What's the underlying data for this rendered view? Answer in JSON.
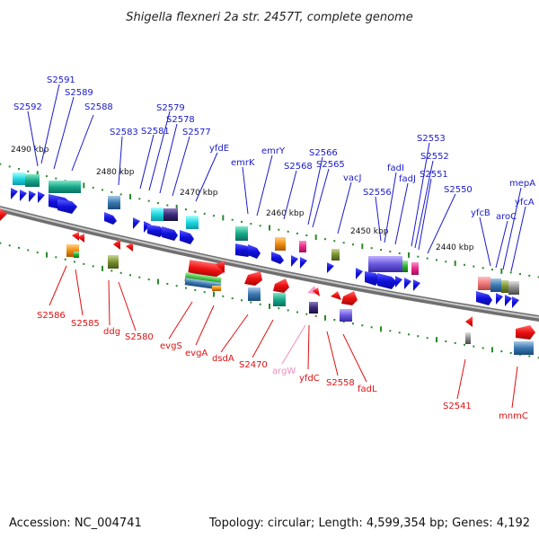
{
  "title": "Shigella flexneri 2a str. 2457T, complete genome",
  "footer": {
    "accession": "Accession: NC_004741",
    "summary": "Topology: circular; Length: 4,599,354 bp; Genes: 4,192"
  },
  "colors": {
    "forward_label": "#1a1acc",
    "reverse_label": "#e01010",
    "rna_label": "#f08cc0",
    "backbone": "#8a8a8a",
    "tick": "#2a8a2a",
    "forward_arrow": "#1515e0",
    "reverse_arrow": "#ee1010"
  },
  "scale_labels": [
    "2490 kbp",
    "2480 kbp",
    "2470 kbp",
    "2460 kbp",
    "2450 kbp",
    "2440 kbp"
  ],
  "genes_forward": [
    "S2592",
    "S2591",
    "S2589",
    "S2588",
    "S2583",
    "S2581",
    "S2579",
    "S2578",
    "S2577",
    "yfdE",
    "emrK",
    "emrY",
    "S2568",
    "S2566",
    "S2565",
    "vacJ",
    "S2556",
    "fadI",
    "fadJ",
    "S2553",
    "S2552",
    "S2551",
    "S2550",
    "yfcB",
    "aroC",
    "mepA",
    "yfcA"
  ],
  "genes_reverse": [
    "S2586",
    "S2585",
    "ddg",
    "S2580",
    "evgS",
    "evgA",
    "dsdA",
    "S2470",
    "argW",
    "yfdC",
    "S2558",
    "fadL",
    "S2541",
    "mnmC"
  ],
  "rna_genes": [
    "argW"
  ]
}
